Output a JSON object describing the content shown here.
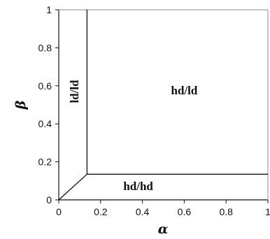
{
  "chart_data": {
    "type": "diagram",
    "title": "",
    "xlabel": "α",
    "ylabel": "β",
    "xlim": [
      0,
      1
    ],
    "ylim": [
      0,
      1
    ],
    "x_ticks": [
      "0",
      "0.2",
      "0.4",
      "0.6",
      "0.8",
      "1"
    ],
    "y_ticks": [
      "0",
      "0.2",
      "0.4",
      "0.6",
      "0.8",
      "1"
    ],
    "boundaries": [
      {
        "name": "vertical-boundary",
        "points": [
          [
            0.135,
            0.135
          ],
          [
            0.135,
            1
          ]
        ]
      },
      {
        "name": "horizontal-boundary",
        "points": [
          [
            0.135,
            0.135
          ],
          [
            1,
            0.135
          ]
        ]
      },
      {
        "name": "diagonal-boundary",
        "points": [
          [
            0,
            0
          ],
          [
            0.135,
            0.135
          ]
        ]
      }
    ],
    "regions": [
      {
        "label": "ld/ld",
        "x": 0.08,
        "y": 0.57,
        "rotated": true
      },
      {
        "label": "hd/ld",
        "x": 0.6,
        "y": 0.57,
        "rotated": false
      },
      {
        "label": "hd/hd",
        "x": 0.38,
        "y": 0.065,
        "rotated": false
      }
    ],
    "grid": false
  }
}
